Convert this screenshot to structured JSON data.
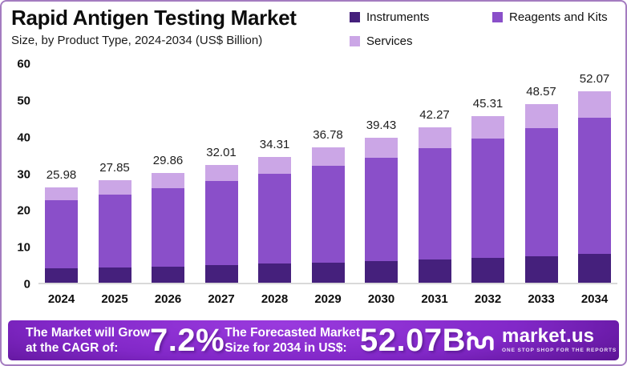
{
  "header": {
    "title": "Rapid Antigen Testing Market",
    "subtitle": "Size, by Product Type, 2024-2034 (US$ Billion)"
  },
  "legend": [
    {
      "label": "Instruments",
      "color": "#45207c"
    },
    {
      "label": "Reagents and Kits",
      "color": "#8a4fc9"
    },
    {
      "label": "Services",
      "color": "#cba6e6"
    }
  ],
  "chart_data": {
    "type": "bar",
    "stacked": true,
    "title": "Rapid Antigen Testing Market",
    "subtitle": "Size, by Product Type, 2024-2034 (US$ Billion)",
    "xlabel": "",
    "ylabel": "US$ Billion",
    "ylim": [
      0,
      60
    ],
    "y_ticks": [
      0,
      10,
      20,
      30,
      40,
      50,
      60
    ],
    "grid": false,
    "legend_position": "top-right",
    "categories": [
      "2024",
      "2025",
      "2026",
      "2027",
      "2028",
      "2029",
      "2030",
      "2031",
      "2032",
      "2033",
      "2034"
    ],
    "totals": [
      25.98,
      27.85,
      29.86,
      32.01,
      34.31,
      36.78,
      39.43,
      42.27,
      45.31,
      48.57,
      52.07
    ],
    "total_labels": [
      "25.98",
      "27.85",
      "29.86",
      "32.01",
      "34.31",
      "36.78",
      "39.43",
      "42.27",
      "45.31",
      "48.57",
      "52.07"
    ],
    "series": [
      {
        "name": "Instruments",
        "color": "#45207c",
        "values": [
          3.9,
          4.18,
          4.48,
          4.8,
          5.15,
          5.52,
          5.91,
          6.34,
          6.8,
          7.29,
          7.81
        ]
      },
      {
        "name": "Reagents and Kits",
        "color": "#8a4fc9",
        "values": [
          18.58,
          19.92,
          21.36,
          22.9,
          24.54,
          26.31,
          28.21,
          30.23,
          32.41,
          34.74,
          37.25
        ]
      },
      {
        "name": "Services",
        "color": "#cba6e6",
        "values": [
          3.5,
          3.75,
          4.02,
          4.31,
          4.62,
          4.95,
          5.31,
          5.7,
          6.1,
          6.54,
          7.01
        ]
      }
    ]
  },
  "banner": {
    "cagr_text_line1": "The Market will Grow",
    "cagr_text_line2": "at the CAGR of:",
    "cagr_value": "7.2%",
    "forecast_text_line1": "The Forecasted Market",
    "forecast_text_line2": "Size for 2034 in US$:",
    "forecast_value": "52.07B",
    "brand": "market.us",
    "brand_tagline": "ONE STOP SHOP FOR THE REPORTS"
  },
  "colors": {
    "frame_border": "#a47cc0",
    "axis_baseline": "#d9d9d9",
    "banner_dark": "#3c0a64",
    "banner_bright": "#9a3ade",
    "text": "#0d0d0d"
  }
}
